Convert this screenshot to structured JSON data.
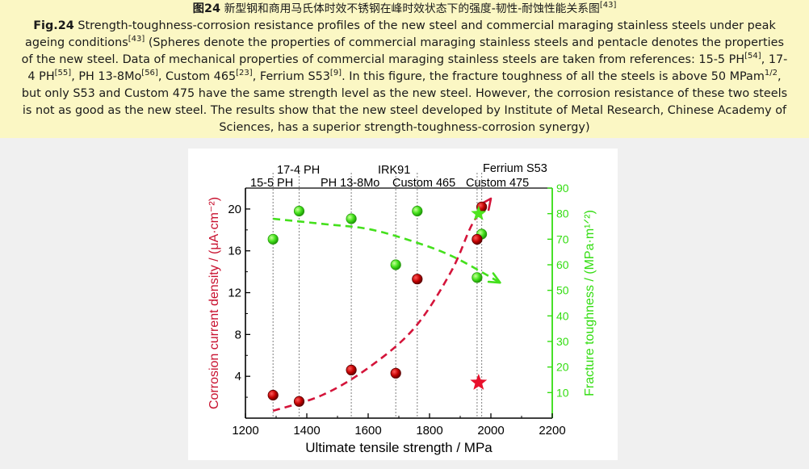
{
  "caption": {
    "cn_prefix": "图24",
    "cn_text": "新型钢和商用马氏体时效不锈钢在峰时效状态下的强度-韧性-耐蚀性能关系图",
    "cn_ref": "[43]",
    "en_prefix": "Fig.24",
    "en_line1": "Strength-toughness-corrosion resistance profiles of the new steel and commercial maraging stainless steels under peak",
    "en_line2a": "ageing conditions",
    "en_line2_ref": "[43]",
    "en_line2b": "(Spheres denote the properties of commercial maraging stainless steels and pentacle denotes the properties",
    "en_line3": "of the new steel. Data of mechanical properties of commercial maraging stainless steels are taken from references: 15-5 PH",
    "en_line3_ref": "[54]",
    "en_line3b": ", 17-",
    "en_line4a": "4 PH",
    "en_line4_ref1": "[55]",
    "en_line4b": ", PH 13-8Mo",
    "en_line4_ref2": "[56]",
    "en_line4c": ", Custom 465",
    "en_line4_ref3": "[23]",
    "en_line4d": ", Ferrium S53",
    "en_line4_ref4": "[9]",
    "en_line4e": ". In this figure, the fracture toughness of all the steels is above 50 MPam",
    "en_line4_sup": "1/2",
    "en_line4f": ",",
    "en_line5": "but only S53 and Custom 475 have the same strength level as the new steel. However, the corrosion resistance of these two steels",
    "en_line6": "is not as good as the new steel. The results show that the new steel developed by Institute of Metal Research, Chinese Academy of",
    "en_line7": "Sciences, has a superior strength-toughness-corrosion synergy)"
  },
  "chart_data": {
    "type": "scatter",
    "x": {
      "label": "Ultimate tensile strength / MPa",
      "min": 1200,
      "max": 2200,
      "ticks": [
        1200,
        1400,
        1600,
        1800,
        2000,
        2200
      ]
    },
    "y_left": {
      "label": "Corrosion current density / (μA·cm⁻²)",
      "min": 0,
      "max": 22,
      "ticks": [
        4,
        8,
        12,
        16,
        20
      ],
      "color": "#c8102e"
    },
    "y_right": {
      "label": "Fracture toughness / (MPa·m¹ᐟ²)",
      "min": 0,
      "max": 90,
      "ticks": [
        10,
        20,
        30,
        40,
        50,
        60,
        70,
        80,
        90
      ],
      "color": "#33dd11"
    },
    "steels": [
      {
        "name": "15-5 PH",
        "uts": 1290
      },
      {
        "name": "17-4 PH",
        "uts": 1375
      },
      {
        "name": "PH 13-8Mo",
        "uts": 1545
      },
      {
        "name": "IRK91",
        "uts": 1690
      },
      {
        "name": "Custom 465",
        "uts": 1760
      },
      {
        "name": "Custom 475",
        "uts": 1955
      },
      {
        "name": "Ferrium S53",
        "uts": 1970
      }
    ],
    "corrosion_points": [
      {
        "x": 1290,
        "y": 2.2
      },
      {
        "x": 1375,
        "y": 1.6
      },
      {
        "x": 1545,
        "y": 4.6
      },
      {
        "x": 1690,
        "y": 4.3
      },
      {
        "x": 1760,
        "y": 13.3
      },
      {
        "x": 1955,
        "y": 17.1
      },
      {
        "x": 1970,
        "y": 20.2
      }
    ],
    "toughness_points": [
      {
        "x": 1290,
        "y": 70
      },
      {
        "x": 1375,
        "y": 81
      },
      {
        "x": 1545,
        "y": 78
      },
      {
        "x": 1690,
        "y": 60
      },
      {
        "x": 1760,
        "y": 81
      },
      {
        "x": 1955,
        "y": 55
      },
      {
        "x": 1970,
        "y": 72
      }
    ],
    "new_steel": {
      "uts": 1960,
      "corrosion": 3.4,
      "toughness": 80
    },
    "corrosion_trend": [
      [
        1290,
        0.7
      ],
      [
        1450,
        2.2
      ],
      [
        1600,
        4.8
      ],
      [
        1750,
        8.6
      ],
      [
        1870,
        14.0
      ],
      [
        1940,
        18.6
      ],
      [
        2000,
        21.0
      ]
    ],
    "toughness_trend": [
      [
        1290,
        78
      ],
      [
        1450,
        76
      ],
      [
        1600,
        74
      ],
      [
        1750,
        69
      ],
      [
        1880,
        63
      ],
      [
        2030,
        53
      ]
    ]
  }
}
